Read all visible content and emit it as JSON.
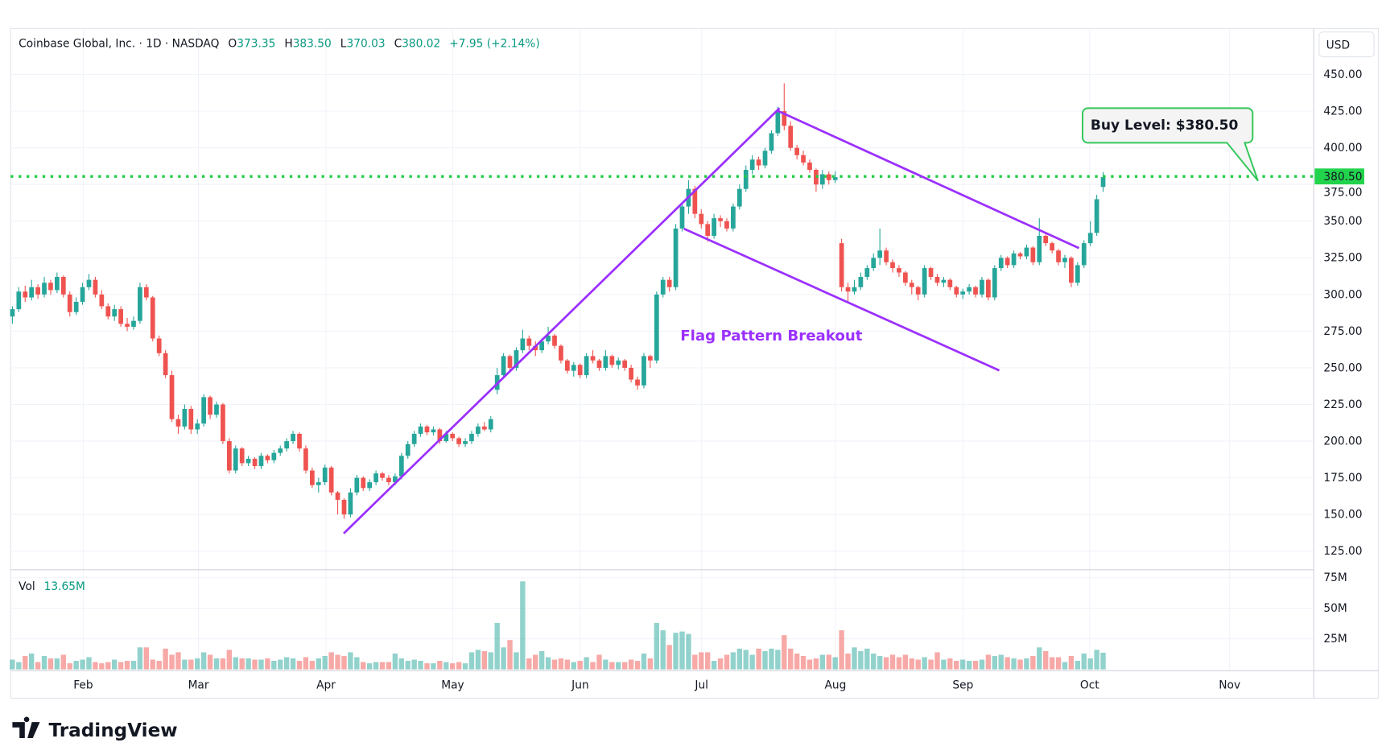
{
  "header": {
    "symbol": "Coinbase Global, Inc. · 1D · NASDAQ",
    "o_label": "O",
    "o_value": "373.35",
    "h_label": "H",
    "h_value": "383.50",
    "l_label": "L",
    "l_value": "370.03",
    "c_label": "C",
    "c_value": "380.02",
    "change": "+7.95 (+2.14%)"
  },
  "currency_button": "USD",
  "volume_legend": {
    "label": "Vol",
    "value": "13.65M"
  },
  "annotations": {
    "pattern_label": "Flag Pattern Breakout",
    "buy_callout": "Buy Level: $380.50",
    "buy_level_tag": "380.50",
    "buy_level": 380.5
  },
  "branding": "TradingView",
  "colors": {
    "up": "#26a69a",
    "down": "#ef5350",
    "buy_line": "#22cc44",
    "pattern": "#9b30ff"
  },
  "chart_data": {
    "type": "candlestick",
    "title": "Coinbase Global, Inc. · 1D · NASDAQ",
    "price_ticks": [
      "125.00",
      "150.00",
      "175.00",
      "200.00",
      "225.00",
      "250.00",
      "275.00",
      "300.00",
      "325.00",
      "350.00",
      "375.00",
      "400.00",
      "425.00",
      "450.00"
    ],
    "ylim": [
      125,
      450
    ],
    "volume_ticks": [
      "25M",
      "50M",
      "75M"
    ],
    "volume_ylim": [
      0,
      75
    ],
    "months": [
      "Feb",
      "Mar",
      "Apr",
      "May",
      "Jun",
      "Jul",
      "Aug",
      "Sep",
      "Oct",
      "Nov"
    ],
    "candle_fields": [
      "open",
      "high",
      "low",
      "close",
      "volume_millions"
    ],
    "candles": [
      [
        285,
        292,
        280,
        290,
        8
      ],
      [
        290,
        305,
        288,
        302,
        6
      ],
      [
        302,
        306,
        295,
        298,
        11
      ],
      [
        298,
        310,
        296,
        305,
        13
      ],
      [
        305,
        307,
        297,
        300,
        6
      ],
      [
        300,
        312,
        298,
        308,
        11
      ],
      [
        308,
        310,
        300,
        303,
        9
      ],
      [
        303,
        315,
        301,
        312,
        9
      ],
      [
        312,
        313,
        298,
        300,
        12
      ],
      [
        300,
        302,
        285,
        288,
        5
      ],
      [
        288,
        298,
        286,
        295,
        7
      ],
      [
        295,
        308,
        293,
        305,
        8
      ],
      [
        305,
        314,
        303,
        310,
        10
      ],
      [
        310,
        312,
        298,
        300,
        6
      ],
      [
        300,
        303,
        290,
        292,
        5
      ],
      [
        292,
        294,
        283,
        285,
        6
      ],
      [
        285,
        293,
        282,
        290,
        8
      ],
      [
        290,
        292,
        278,
        280,
        6
      ],
      [
        280,
        284,
        275,
        278,
        7
      ],
      [
        278,
        285,
        276,
        282,
        7
      ],
      [
        282,
        308,
        280,
        305,
        18
      ],
      [
        305,
        307,
        296,
        298,
        18
      ],
      [
        298,
        299,
        268,
        270,
        8
      ],
      [
        270,
        272,
        258,
        260,
        7
      ],
      [
        260,
        262,
        243,
        245,
        17
      ],
      [
        245,
        248,
        213,
        215,
        12
      ],
      [
        215,
        218,
        205,
        210,
        14
      ],
      [
        210,
        225,
        208,
        222,
        8
      ],
      [
        222,
        224,
        205,
        208,
        8
      ],
      [
        208,
        215,
        205,
        212,
        9
      ],
      [
        212,
        232,
        210,
        230,
        14
      ],
      [
        230,
        231,
        215,
        218,
        12
      ],
      [
        218,
        227,
        216,
        225,
        9
      ],
      [
        225,
        226,
        198,
        200,
        9
      ],
      [
        200,
        202,
        178,
        180,
        16
      ],
      [
        180,
        197,
        178,
        195,
        10
      ],
      [
        195,
        196,
        183,
        185,
        9
      ],
      [
        185,
        190,
        183,
        188,
        9
      ],
      [
        188,
        189,
        181,
        183,
        8
      ],
      [
        183,
        192,
        181,
        190,
        8
      ],
      [
        190,
        191,
        185,
        187,
        9
      ],
      [
        187,
        194,
        185,
        192,
        7
      ],
      [
        192,
        197,
        190,
        195,
        8
      ],
      [
        195,
        202,
        193,
        200,
        10
      ],
      [
        200,
        207,
        198,
        205,
        9
      ],
      [
        205,
        206,
        193,
        195,
        7
      ],
      [
        195,
        197,
        178,
        180,
        10
      ],
      [
        180,
        182,
        168,
        170,
        7
      ],
      [
        170,
        175,
        165,
        172,
        9
      ],
      [
        172,
        184,
        170,
        182,
        11
      ],
      [
        182,
        183,
        163,
        165,
        14
      ],
      [
        165,
        166,
        150,
        160,
        12
      ],
      [
        160,
        161,
        147,
        150,
        11
      ],
      [
        150,
        168,
        148,
        165,
        14
      ],
      [
        165,
        177,
        163,
        175,
        10
      ],
      [
        175,
        176,
        166,
        168,
        6
      ],
      [
        168,
        174,
        166,
        172,
        5
      ],
      [
        172,
        180,
        170,
        178,
        6
      ],
      [
        178,
        179,
        173,
        175,
        6
      ],
      [
        175,
        177,
        170,
        172,
        6
      ],
      [
        172,
        178,
        170,
        176,
        13
      ],
      [
        176,
        192,
        174,
        190,
        9
      ],
      [
        190,
        200,
        188,
        198,
        7
      ],
      [
        198,
        207,
        196,
        205,
        8
      ],
      [
        205,
        212,
        203,
        210,
        7
      ],
      [
        210,
        211,
        204,
        206,
        5
      ],
      [
        206,
        210,
        204,
        208,
        5
      ],
      [
        208,
        209,
        198,
        200,
        7
      ],
      [
        200,
        207,
        199,
        205,
        6
      ],
      [
        205,
        206,
        200,
        202,
        5
      ],
      [
        202,
        203,
        196,
        198,
        6
      ],
      [
        198,
        202,
        196,
        200,
        5
      ],
      [
        200,
        207,
        198,
        205,
        14
      ],
      [
        205,
        212,
        203,
        210,
        16
      ],
      [
        210,
        213,
        207,
        208,
        15
      ],
      [
        208,
        217,
        206,
        215,
        14
      ],
      [
        235,
        250,
        232,
        245,
        38
      ],
      [
        245,
        260,
        243,
        258,
        18
      ],
      [
        258,
        259,
        248,
        250,
        24
      ],
      [
        250,
        264,
        248,
        262,
        14
      ],
      [
        262,
        276,
        260,
        270,
        72
      ],
      [
        270,
        272,
        262,
        265,
        9
      ],
      [
        265,
        268,
        258,
        262,
        12
      ],
      [
        262,
        270,
        260,
        268,
        15
      ],
      [
        268,
        278,
        266,
        272,
        10
      ],
      [
        272,
        273,
        263,
        265,
        8
      ],
      [
        265,
        266,
        253,
        255,
        9
      ],
      [
        255,
        256,
        246,
        248,
        8
      ],
      [
        248,
        254,
        244,
        252,
        6
      ],
      [
        252,
        253,
        243,
        245,
        7
      ],
      [
        245,
        260,
        243,
        258,
        10
      ],
      [
        258,
        262,
        253,
        255,
        6
      ],
      [
        255,
        256,
        248,
        250,
        12
      ],
      [
        250,
        262,
        248,
        258,
        8
      ],
      [
        258,
        259,
        250,
        252,
        6
      ],
      [
        252,
        257,
        249,
        255,
        6
      ],
      [
        255,
        256,
        248,
        250,
        6
      ],
      [
        250,
        252,
        240,
        242,
        8
      ],
      [
        242,
        244,
        235,
        238,
        7
      ],
      [
        238,
        260,
        236,
        258,
        13
      ],
      [
        258,
        259,
        250,
        255,
        9
      ],
      [
        255,
        302,
        253,
        300,
        38
      ],
      [
        300,
        312,
        298,
        310,
        32
      ],
      [
        310,
        312,
        302,
        305,
        20
      ],
      [
        305,
        348,
        303,
        345,
        30
      ],
      [
        345,
        362,
        343,
        360,
        31
      ],
      [
        360,
        378,
        355,
        372,
        29
      ],
      [
        372,
        374,
        352,
        355,
        12
      ],
      [
        355,
        358,
        345,
        348,
        14
      ],
      [
        348,
        350,
        336,
        340,
        14
      ],
      [
        340,
        355,
        338,
        352,
        7
      ],
      [
        352,
        354,
        346,
        350,
        9
      ],
      [
        350,
        352,
        343,
        345,
        12
      ],
      [
        345,
        362,
        343,
        360,
        14
      ],
      [
        360,
        375,
        358,
        372,
        17
      ],
      [
        372,
        388,
        370,
        385,
        16
      ],
      [
        385,
        395,
        382,
        392,
        12
      ],
      [
        392,
        394,
        385,
        388,
        17
      ],
      [
        388,
        400,
        386,
        398,
        15
      ],
      [
        398,
        412,
        396,
        410,
        17
      ],
      [
        410,
        428,
        408,
        425,
        16
      ],
      [
        425,
        444,
        412,
        415,
        28
      ],
      [
        415,
        418,
        398,
        400,
        17
      ],
      [
        400,
        402,
        392,
        395,
        13
      ],
      [
        395,
        398,
        388,
        390,
        11
      ],
      [
        390,
        392,
        383,
        385,
        8
      ],
      [
        385,
        386,
        370,
        375,
        9
      ],
      [
        375,
        385,
        372,
        382,
        12
      ],
      [
        382,
        384,
        375,
        378,
        12
      ],
      [
        378,
        384,
        376,
        380,
        10
      ],
      [
        335,
        338,
        302,
        305,
        32
      ],
      [
        305,
        308,
        295,
        302,
        13
      ],
      [
        302,
        310,
        300,
        305,
        18
      ],
      [
        305,
        315,
        303,
        312,
        15
      ],
      [
        312,
        320,
        310,
        318,
        17
      ],
      [
        318,
        328,
        316,
        325,
        13
      ],
      [
        325,
        345,
        320,
        330,
        11
      ],
      [
        330,
        332,
        320,
        322,
        10
      ],
      [
        322,
        324,
        315,
        318,
        12
      ],
      [
        318,
        320,
        312,
        315,
        10
      ],
      [
        315,
        316,
        306,
        308,
        12
      ],
      [
        308,
        310,
        300,
        305,
        9
      ],
      [
        305,
        306,
        296,
        300,
        8
      ],
      [
        300,
        320,
        298,
        318,
        10
      ],
      [
        318,
        319,
        310,
        312,
        8
      ],
      [
        312,
        314,
        306,
        308,
        14
      ],
      [
        308,
        312,
        305,
        310,
        8
      ],
      [
        310,
        311,
        303,
        305,
        9
      ],
      [
        305,
        306,
        298,
        300,
        7
      ],
      [
        300,
        304,
        297,
        302,
        8
      ],
      [
        302,
        307,
        300,
        305,
        7
      ],
      [
        305,
        306,
        298,
        300,
        7
      ],
      [
        300,
        312,
        298,
        310,
        8
      ],
      [
        310,
        311,
        296,
        298,
        12
      ],
      [
        298,
        320,
        296,
        318,
        11
      ],
      [
        318,
        327,
        316,
        325,
        12
      ],
      [
        325,
        326,
        318,
        320,
        10
      ],
      [
        320,
        330,
        318,
        328,
        9
      ],
      [
        328,
        329,
        324,
        326,
        8
      ],
      [
        326,
        334,
        324,
        332,
        9
      ],
      [
        332,
        333,
        320,
        322,
        11
      ],
      [
        322,
        352,
        320,
        340,
        18
      ],
      [
        340,
        342,
        333,
        335,
        15
      ],
      [
        335,
        336,
        328,
        330,
        10
      ],
      [
        330,
        331,
        320,
        322,
        10
      ],
      [
        322,
        327,
        318,
        325,
        6
      ],
      [
        325,
        326,
        305,
        308,
        11
      ],
      [
        308,
        322,
        306,
        320,
        7
      ],
      [
        320,
        337,
        318,
        335,
        13
      ],
      [
        335,
        350,
        333,
        342,
        9
      ],
      [
        342,
        368,
        340,
        365,
        16
      ],
      [
        373.35,
        383.5,
        370.03,
        380.02,
        13.65
      ]
    ]
  }
}
